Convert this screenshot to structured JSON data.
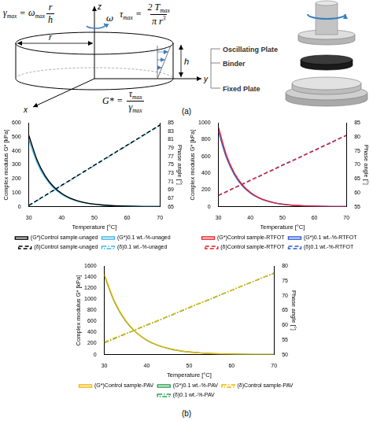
{
  "figure_labels": [
    "(a)",
    "(b)"
  ],
  "diagram": {
    "formulas": [
      {
        "lhs": [
          {
            "t": "γ",
            "sub": "max"
          }
        ],
        "sign": "=",
        "coef": [
          {
            "t": "ω",
            "sub": "max"
          }
        ],
        "num": [
          {
            "t": "r"
          }
        ],
        "den": [
          {
            "t": "h"
          }
        ]
      },
      {
        "lhs": [
          {
            "t": "τ",
            "sub": "max"
          }
        ],
        "sign": "=",
        "num": [
          {
            "t": "2 T",
            "sub": "max"
          }
        ],
        "den": [
          {
            "t": "π r",
            "sup": "3"
          }
        ]
      },
      {
        "lhs": [
          {
            "t": "G*"
          }
        ],
        "sign": "=",
        "num": [
          {
            "t": "τ",
            "sub": "max"
          }
        ],
        "den": [
          {
            "t": "γ",
            "sub": "max"
          }
        ]
      }
    ],
    "labels": {
      "radius": "r",
      "height": "h",
      "z_axis": "z",
      "x_axis": "x",
      "y_axis": "y",
      "angular_velocity": "ω"
    },
    "parts": {
      "oscillating_plate": "Oscillating Plate",
      "binder": "Binder",
      "fixed_plate": "Fixed Plate"
    }
  },
  "chart_data": [
    {
      "type": "line",
      "x_label": "Temperature [°C]",
      "y_label": "Complex modulus G* [kPa]",
      "y2_label": "Phase angle [°]",
      "x": [
        30,
        32.5,
        35,
        37.5,
        40,
        42.5,
        45,
        47.5,
        50,
        52.5,
        55,
        57.5,
        60,
        62.5,
        65,
        67.5,
        70
      ],
      "xlim": [
        30,
        70
      ],
      "xticks": [
        30,
        40,
        50,
        60,
        70
      ],
      "ylim": [
        0,
        600
      ],
      "yticks": [
        0,
        100,
        200,
        300,
        400,
        500,
        600
      ],
      "y2lim": [
        65,
        85
      ],
      "y2ticks": [
        65,
        67,
        69,
        71,
        73,
        75,
        77,
        79,
        81,
        83,
        85
      ],
      "grid": false,
      "legend": "bottom",
      "series": [
        {
          "name": "(G*)Control sample-unaged",
          "color": "#000000",
          "line_style": "solid",
          "values": [
            510,
            335,
            220,
            144,
            95,
            62,
            41,
            27,
            18,
            11.6,
            7.6,
            5,
            3.3,
            2.2,
            1.4,
            0.9,
            0.6
          ]
        },
        {
          "name": "(G*)0.1 wt.-%-unaged",
          "color": "#41b6e6",
          "line_style": "solid",
          "values": [
            480,
            315,
            207,
            136,
            89,
            58,
            38,
            25,
            16.5,
            10.8,
            7.1,
            4.7,
            3.1,
            2,
            1.3,
            0.9,
            0.6
          ]
        },
        {
          "name": "(δ)Control sample-unaged",
          "color": "#000000",
          "line_style": "dashed",
          "axis": "y2",
          "values": [
            65.3,
            66.5,
            67.7,
            68.9,
            70.1,
            71.3,
            72.5,
            73.7,
            74.9,
            76.1,
            77.3,
            78.5,
            79.7,
            80.9,
            82.1,
            83.3,
            84.5
          ]
        },
        {
          "name": "(δ)0.1 wt.-%-unaged",
          "color": "#41b6e6",
          "line_style": "dashdot",
          "axis": "y2",
          "values": [
            65.2,
            66.4,
            67.6,
            68.8,
            70.0,
            71.2,
            72.4,
            73.6,
            74.8,
            76.0,
            77.2,
            78.4,
            79.6,
            80.8,
            82.0,
            83.2,
            84.4
          ]
        }
      ]
    },
    {
      "type": "line",
      "x_label": "Temperature [°C]",
      "y_label": "Complex modulus G* [kPa]",
      "y2_label": "Phase angle [°]",
      "x": [
        30,
        32.5,
        35,
        37.5,
        40,
        42.5,
        45,
        47.5,
        50,
        52.5,
        55,
        57.5,
        60,
        62.5,
        65,
        67.5,
        70
      ],
      "xlim": [
        30,
        70
      ],
      "xticks": [
        30,
        40,
        50,
        60,
        70
      ],
      "ylim": [
        0,
        1000
      ],
      "yticks": [
        0,
        200,
        400,
        600,
        800,
        1000
      ],
      "y2lim": [
        55,
        85
      ],
      "y2ticks": [
        55,
        60,
        65,
        70,
        75,
        80,
        85
      ],
      "grid": false,
      "legend": "bottom",
      "series": [
        {
          "name": "(G*)Control sample-RTFOT",
          "color": "#e8202a",
          "line_style": "solid",
          "values": [
            950,
            615,
            400,
            260,
            170,
            110,
            72,
            47,
            30,
            20,
            13,
            8.5,
            5.5,
            3.6,
            2.3,
            1.5,
            1.0
          ]
        },
        {
          "name": "(G*)0.1 wt.-%-RTFOT",
          "color": "#2a5bd7",
          "line_style": "solid",
          "values": [
            900,
            585,
            380,
            247,
            161,
            105,
            68,
            44,
            29,
            19,
            12,
            8,
            5.2,
            3.4,
            2.2,
            1.4,
            0.9
          ]
        },
        {
          "name": "(δ)Control sample-RTFOT",
          "color": "#e8202a",
          "line_style": "dashed",
          "axis": "y2",
          "values": [
            59.0,
            60.3,
            61.7,
            63.0,
            64.4,
            65.7,
            67.1,
            68.4,
            69.8,
            71.1,
            72.4,
            73.8,
            75.1,
            76.5,
            77.8,
            79.2,
            80.5
          ]
        },
        {
          "name": "(δ)0.1 wt.-%-RTFOT",
          "color": "#2a5bd7",
          "line_style": "dashed",
          "axis": "y2",
          "values": [
            59.1,
            60.4,
            61.8,
            63.1,
            64.5,
            65.8,
            67.2,
            68.5,
            69.9,
            71.2,
            72.5,
            73.9,
            75.2,
            76.6,
            77.9,
            79.3,
            80.6
          ]
        }
      ]
    },
    {
      "type": "line",
      "x_label": "Temperature [°C]",
      "y_label": "Complex modulus G* [kPa]",
      "y2_label": "Phase angle [°]",
      "x": [
        30,
        32.5,
        35,
        37.5,
        40,
        42.5,
        45,
        47.5,
        50,
        52.5,
        55,
        57.5,
        60,
        62.5,
        65,
        67.5,
        70
      ],
      "xlim": [
        30,
        70
      ],
      "xticks": [
        30,
        40,
        50,
        60,
        70
      ],
      "ylim": [
        0,
        1600
      ],
      "yticks": [
        0,
        200,
        400,
        600,
        800,
        1000,
        1200,
        1400,
        1600
      ],
      "y2lim": [
        50,
        80
      ],
      "y2ticks": [
        50,
        55,
        60,
        65,
        70,
        75,
        80
      ],
      "grid": false,
      "legend": "bottom",
      "series": [
        {
          "name": "(G*)Control sample-PAV",
          "color": "#f2b705",
          "line_style": "solid",
          "values": [
            1450,
            950,
            620,
            405,
            265,
            173,
            113,
            74,
            48,
            31,
            20,
            13,
            8.7,
            5.7,
            3.7,
            2.4,
            1.6
          ]
        },
        {
          "name": "(G*)0.1 wt.-%-PAV",
          "color": "#2e9e4f",
          "line_style": "solid",
          "values": [
            1430,
            935,
            610,
            400,
            260,
            170,
            111,
            72,
            47,
            31,
            20,
            13,
            8.5,
            5.6,
            3.6,
            2.4,
            1.6
          ]
        },
        {
          "name": "(δ)Control sample-PAV",
          "color": "#f2b705",
          "line_style": "dashdot",
          "axis": "y2",
          "values": [
            54.2,
            55.7,
            57.1,
            58.6,
            60.1,
            61.5,
            63.0,
            64.5,
            66.0,
            67.4,
            68.9,
            70.4,
            71.8,
            73.3,
            74.8,
            76.2,
            77.7
          ]
        },
        {
          "name": "(δ)0.1 wt.-%-PAV",
          "color": "#2e9e4f",
          "line_style": "dashdot",
          "axis": "y2",
          "values": [
            54.0,
            55.5,
            57.0,
            58.5,
            60.0,
            61.4,
            62.9,
            64.4,
            65.9,
            67.4,
            68.8,
            70.3,
            71.8,
            73.3,
            74.7,
            76.2,
            77.6
          ]
        }
      ]
    }
  ]
}
